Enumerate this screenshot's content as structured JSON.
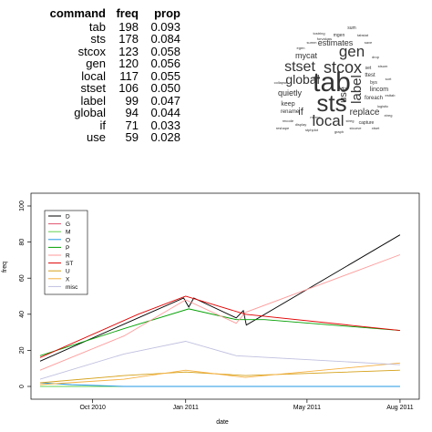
{
  "table": {
    "headers": [
      "command",
      "freq",
      "prop"
    ],
    "rows": [
      [
        "tab",
        "198",
        "0.093"
      ],
      [
        "sts",
        "178",
        "0.084"
      ],
      [
        "stcox",
        "123",
        "0.058"
      ],
      [
        "gen",
        "120",
        "0.056"
      ],
      [
        "local",
        "117",
        "0.055"
      ],
      [
        "stset",
        "106",
        "0.050"
      ],
      [
        "label",
        "99",
        "0.047"
      ],
      [
        "global",
        "94",
        "0.044"
      ],
      [
        "if",
        "71",
        "0.033"
      ],
      [
        "use",
        "59",
        "0.028"
      ]
    ]
  },
  "wordcloud": {
    "words": [
      {
        "text": "tab",
        "size": 30
      },
      {
        "text": "sts",
        "size": 26
      },
      {
        "text": "stcox",
        "size": 18
      },
      {
        "text": "gen",
        "size": 17
      },
      {
        "text": "local",
        "size": 17
      },
      {
        "text": "stset",
        "size": 16
      },
      {
        "text": "label",
        "size": 15
      },
      {
        "text": "global",
        "size": 14
      },
      {
        "text": "if",
        "size": 11
      },
      {
        "text": "use",
        "size": 11
      },
      {
        "text": "replace",
        "size": 10
      },
      {
        "text": "quietly",
        "size": 9
      },
      {
        "text": "estimates",
        "size": 9
      },
      {
        "text": "mycat",
        "size": 9
      },
      {
        "text": "keep",
        "size": 7
      },
      {
        "text": "lincom",
        "size": 7
      },
      {
        "text": "foreach",
        "size": 6
      },
      {
        "text": "rename",
        "size": 6
      },
      {
        "text": "ttest",
        "size": 6
      },
      {
        "text": "mgen",
        "size": 5
      },
      {
        "text": "set",
        "size": 5
      },
      {
        "text": "bys",
        "size": 5
      },
      {
        "text": "sum",
        "size": 5
      },
      {
        "text": "capture",
        "size": 5
      },
      {
        "text": "tostring",
        "size": 4
      },
      {
        "text": "forvalues",
        "size": 4
      },
      {
        "text": "tabstat",
        "size": 4
      },
      {
        "text": "save",
        "size": 4
      },
      {
        "text": "logistic",
        "size": 4
      },
      {
        "text": "xtset",
        "size": 4
      },
      {
        "text": "stphplot",
        "size": 4
      },
      {
        "text": "egen",
        "size": 4
      },
      {
        "text": "drop",
        "size": 4
      },
      {
        "text": "stsum",
        "size": 4
      },
      {
        "text": "recode",
        "size": 4
      },
      {
        "text": "merge",
        "size": 4
      },
      {
        "text": "xtreg",
        "size": 4
      },
      {
        "text": "stcurve",
        "size": 4
      },
      {
        "text": "display",
        "size": 4
      },
      {
        "text": "graph",
        "size": 4
      },
      {
        "text": "summ",
        "size": 4
      },
      {
        "text": "sort",
        "size": 4
      },
      {
        "text": "streg",
        "size": 4
      },
      {
        "text": "esttab",
        "size": 4
      },
      {
        "text": "collapse",
        "size": 4
      },
      {
        "text": "reshape",
        "size": 4
      }
    ]
  },
  "chart_data": {
    "type": "line",
    "xlabel": "date",
    "ylabel": "freq",
    "ylim": [
      0,
      100
    ],
    "yticks": [
      0,
      20,
      40,
      60,
      80,
      100
    ],
    "xticks": [
      {
        "date": "2010-10-01",
        "label": "Oct 2010"
      },
      {
        "date": "2011-01-01",
        "label": "Jan 2011"
      },
      {
        "date": "2011-05-01",
        "label": "May 2011"
      },
      {
        "date": "2011-08-01",
        "label": "Aug 2011"
      }
    ],
    "xlim": [
      "2010-08-01",
      "2011-08-20"
    ],
    "grid": false,
    "legend_position": "top-left",
    "series": [
      {
        "name": "D",
        "color": "#000000",
        "points": [
          [
            "2010-08-10",
            14
          ],
          [
            "2010-11-15",
            38
          ],
          [
            "2010-12-30",
            49
          ],
          [
            "2011-01-04",
            44
          ],
          [
            "2011-01-09",
            49
          ],
          [
            "2011-02-20",
            38
          ],
          [
            "2011-02-27",
            42
          ],
          [
            "2011-03-02",
            34
          ],
          [
            "2011-08-01",
            84
          ]
        ]
      },
      {
        "name": "G",
        "color": "#df536b",
        "points": [
          [
            "2010-08-10",
            0
          ],
          [
            "2011-08-01",
            0
          ]
        ]
      },
      {
        "name": "M",
        "color": "#61d04f",
        "points": [
          [
            "2010-08-10",
            0
          ],
          [
            "2011-08-01",
            0
          ]
        ]
      },
      {
        "name": "O",
        "color": "#2297e6",
        "points": [
          [
            "2010-08-10",
            2
          ],
          [
            "2010-09-10",
            1
          ],
          [
            "2010-11-01",
            0
          ],
          [
            "2011-08-01",
            0
          ]
        ]
      },
      {
        "name": "P",
        "color": "#00a000",
        "points": [
          [
            "2010-08-10",
            17
          ],
          [
            "2010-11-01",
            32
          ],
          [
            "2011-01-04",
            43
          ],
          [
            "2011-02-20",
            37
          ],
          [
            "2011-03-20",
            37
          ],
          [
            "2011-08-01",
            31
          ]
        ]
      },
      {
        "name": "R",
        "color": "#ff9a9a",
        "points": [
          [
            "2010-08-10",
            9
          ],
          [
            "2010-11-01",
            28
          ],
          [
            "2011-01-01",
            48
          ],
          [
            "2011-02-20",
            35
          ],
          [
            "2011-03-01",
            41
          ],
          [
            "2011-08-01",
            73
          ]
        ]
      },
      {
        "name": "ST",
        "color": "#e00000",
        "points": [
          [
            "2010-08-10",
            16
          ],
          [
            "2010-11-15",
            40
          ],
          [
            "2011-01-01",
            50
          ],
          [
            "2011-03-01",
            40
          ],
          [
            "2011-08-01",
            31
          ]
        ]
      },
      {
        "name": "U",
        "color": "#d4a017",
        "points": [
          [
            "2010-08-10",
            2
          ],
          [
            "2010-11-01",
            6
          ],
          [
            "2011-01-01",
            8
          ],
          [
            "2011-03-01",
            6
          ],
          [
            "2011-08-01",
            9
          ]
        ]
      },
      {
        "name": "X",
        "color": "#f5b041",
        "points": [
          [
            "2010-08-10",
            1
          ],
          [
            "2010-11-01",
            4
          ],
          [
            "2011-01-01",
            9
          ],
          [
            "2011-03-01",
            5
          ],
          [
            "2011-08-01",
            13
          ]
        ]
      },
      {
        "name": "misc",
        "color": "#c0c0e0",
        "points": [
          [
            "2010-08-10",
            4
          ],
          [
            "2010-11-01",
            18
          ],
          [
            "2011-01-01",
            25
          ],
          [
            "2011-02-20",
            17
          ],
          [
            "2011-08-01",
            12
          ]
        ]
      }
    ]
  }
}
